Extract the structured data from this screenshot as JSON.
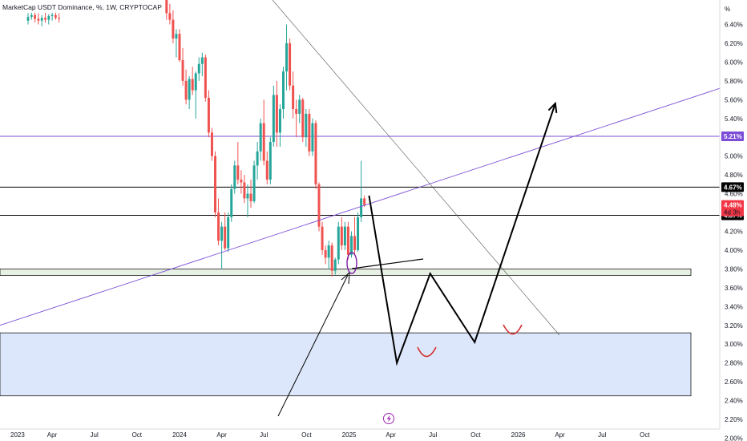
{
  "chart_data": {
    "type": "candlestick",
    "title": "MarketCap USDT Dominance, %, 1W, CRYPTOCAP",
    "y_unit": "%",
    "ylim": [
      1.97,
      6.66
    ],
    "y_ticks": [
      "6.40%",
      "6.20%",
      "6.00%",
      "5.80%",
      "5.60%",
      "5.40%",
      "5.20%",
      "5.00%",
      "4.80%",
      "4.60%",
      "4.40%",
      "4.20%",
      "4.00%",
      "3.80%",
      "3.60%",
      "3.40%",
      "3.20%",
      "3.00%",
      "2.80%",
      "2.60%",
      "2.40%",
      "2.20%",
      "2.00%"
    ],
    "x_labels": [
      "2023",
      "Apr",
      "Jul",
      "Oct",
      "2024",
      "Apr",
      "Jul",
      "Oct",
      "2025",
      "Apr",
      "Jul",
      "Oct",
      "2026",
      "Apr",
      "Jul",
      "Oct"
    ],
    "x_label_dates": [
      "2023-01-01",
      "2023-04-01",
      "2023-07-01",
      "2023-10-01",
      "2024-01-01",
      "2024-04-01",
      "2024-07-01",
      "2024-10-01",
      "2025-01-01",
      "2025-04-01",
      "2025-07-01",
      "2025-10-01",
      "2026-01-01",
      "2026-04-01",
      "2026-07-01",
      "2026-10-01"
    ],
    "candles_2023": [
      [
        6.44,
        6.52,
        6.4,
        6.48
      ],
      [
        6.48,
        6.55,
        6.45,
        6.5
      ],
      [
        6.5,
        6.58,
        6.42,
        6.46
      ],
      [
        6.46,
        6.52,
        6.4,
        6.44
      ],
      [
        6.44,
        6.5,
        6.38,
        6.47
      ],
      [
        6.47,
        6.53,
        6.42,
        6.45
      ],
      [
        6.45,
        6.51,
        6.4,
        6.49
      ],
      [
        6.49,
        6.56,
        6.44,
        6.5
      ],
      [
        6.5,
        6.55,
        6.45,
        6.47
      ],
      [
        6.47,
        6.52,
        6.42,
        6.46
      ]
    ],
    "candles": [
      [
        6.66,
        6.66,
        6.45,
        6.52
      ],
      [
        6.52,
        6.62,
        6.4,
        6.45
      ],
      [
        6.45,
        6.55,
        6.2,
        6.25
      ],
      [
        6.25,
        6.35,
        6.05,
        6.3
      ],
      [
        6.3,
        6.35,
        6.0,
        6.02
      ],
      [
        6.02,
        6.15,
        5.75,
        5.8
      ],
      [
        5.8,
        5.92,
        5.55,
        5.6
      ],
      [
        5.6,
        5.85,
        5.5,
        5.82
      ],
      [
        5.82,
        5.95,
        5.65,
        5.7
      ],
      [
        5.7,
        5.9,
        5.4,
        5.88
      ],
      [
        5.88,
        6.05,
        5.8,
        5.98
      ],
      [
        5.98,
        6.1,
        5.85,
        6.05
      ],
      [
        6.05,
        6.08,
        5.58,
        5.62
      ],
      [
        5.62,
        5.7,
        5.2,
        5.25
      ],
      [
        5.25,
        5.3,
        4.95,
        5.0
      ],
      [
        5.0,
        5.05,
        4.35,
        4.4
      ],
      [
        4.4,
        4.55,
        4.05,
        4.1
      ],
      [
        4.1,
        4.3,
        3.8,
        4.25
      ],
      [
        4.25,
        4.4,
        4.0,
        4.02
      ],
      [
        4.02,
        4.4,
        3.98,
        4.35
      ],
      [
        4.35,
        4.7,
        4.3,
        4.65
      ],
      [
        4.65,
        4.95,
        4.6,
        4.9
      ],
      [
        4.9,
        5.15,
        4.7,
        4.75
      ],
      [
        4.75,
        4.85,
        4.6,
        4.72
      ],
      [
        4.72,
        4.8,
        4.5,
        4.55
      ],
      [
        4.55,
        4.7,
        4.35,
        4.6
      ],
      [
        4.6,
        4.75,
        4.45,
        4.52
      ],
      [
        4.52,
        4.95,
        4.5,
        4.9
      ],
      [
        4.9,
        5.15,
        4.75,
        5.05
      ],
      [
        5.05,
        5.4,
        4.95,
        5.35
      ],
      [
        5.35,
        5.6,
        4.9,
        4.95
      ],
      [
        4.95,
        5.05,
        4.7,
        4.75
      ],
      [
        4.75,
        5.2,
        4.7,
        5.15
      ],
      [
        5.15,
        5.75,
        5.1,
        5.65
      ],
      [
        5.65,
        5.8,
        5.1,
        5.25
      ],
      [
        5.25,
        5.55,
        5.1,
        5.5
      ],
      [
        5.5,
        5.95,
        5.4,
        5.9
      ],
      [
        5.9,
        6.4,
        5.7,
        6.2
      ],
      [
        6.2,
        6.25,
        5.7,
        5.75
      ],
      [
        5.75,
        5.9,
        5.4,
        5.5
      ],
      [
        5.5,
        5.6,
        5.2,
        5.45
      ],
      [
        5.45,
        5.65,
        5.35,
        5.6
      ],
      [
        5.6,
        5.62,
        5.15,
        5.2
      ],
      [
        5.2,
        5.5,
        5.1,
        5.45
      ],
      [
        5.45,
        5.5,
        5.0,
        5.05
      ],
      [
        5.05,
        5.4,
        5.0,
        5.35
      ],
      [
        5.35,
        5.38,
        4.65,
        4.7
      ],
      [
        4.7,
        4.72,
        4.2,
        4.25
      ],
      [
        4.25,
        4.3,
        3.95,
        4.0
      ],
      [
        4.0,
        4.05,
        3.85,
        3.92
      ],
      [
        3.92,
        4.1,
        3.8,
        4.05
      ],
      [
        4.05,
        4.08,
        3.72,
        3.78
      ],
      [
        3.78,
        3.92,
        3.74,
        3.9
      ],
      [
        3.9,
        4.3,
        3.85,
        4.25
      ],
      [
        4.25,
        4.35,
        4.0,
        4.05
      ],
      [
        4.05,
        4.3,
        4.0,
        4.25
      ],
      [
        4.25,
        4.3,
        3.9,
        3.95
      ],
      [
        3.95,
        4.2,
        3.92,
        4.15
      ],
      [
        4.15,
        4.35,
        3.95,
        4.0
      ],
      [
        4.0,
        4.4,
        3.98,
        4.35
      ],
      [
        4.35,
        4.95,
        4.3,
        4.55
      ],
      [
        4.55,
        4.58,
        4.46,
        4.48
      ]
    ],
    "horizontal_levels": [
      {
        "label": "5.21%",
        "value": 5.21,
        "color": "#7c4dd6"
      },
      {
        "label": "4.67%",
        "value": 4.67,
        "color": "#000000"
      },
      {
        "label": "4.37%",
        "value": 4.37,
        "color": "#000000"
      }
    ],
    "current_price": {
      "label": "4.48%",
      "countdown": "4d 3h",
      "value": 4.48,
      "color": "#f23645"
    },
    "support_zone_small": [
      3.73,
      3.8
    ],
    "support_zone_large": [
      2.45,
      3.12
    ],
    "projection": [
      {
        "date": "2025-02-13",
        "value": 4.58
      },
      {
        "date": "2025-04-14",
        "value": 2.8
      },
      {
        "date": "2025-06-25",
        "value": 3.75
      },
      {
        "date": "2025-09-29",
        "value": 3.02
      },
      {
        "date": "2026-03-22",
        "value": 5.56
      }
    ],
    "colors": {
      "up": "#26a69a",
      "down": "#ef5350",
      "trendline": "#7c4dd6",
      "zone_fill": "#dde7fb",
      "zone_edge": "#1a1a1a",
      "markup": "#d32f2f"
    }
  }
}
